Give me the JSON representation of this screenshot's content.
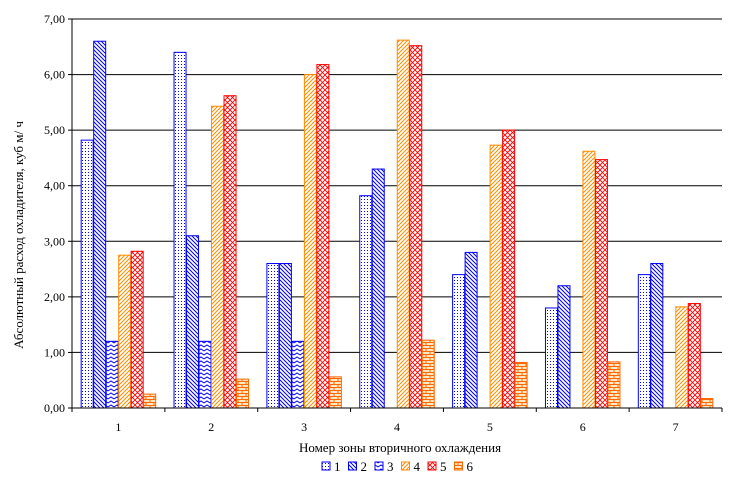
{
  "chart_data": {
    "type": "bar",
    "xlabel": "Номер зоны вторичного охлаждения",
    "ylabel": "Абсолютный расход охладителя, куб м/ ч",
    "categories": [
      "1",
      "2",
      "3",
      "4",
      "5",
      "6",
      "7"
    ],
    "ylim": [
      0,
      7
    ],
    "ytick_values": [
      0,
      1,
      2,
      3,
      4,
      5,
      6,
      7
    ],
    "ytick_labels": [
      "0,00",
      "1,00",
      "2,00",
      "3,00",
      "4,00",
      "5,00",
      "6,00",
      "7,00"
    ],
    "grid": true,
    "legend_position": "bottom",
    "series": [
      {
        "name": "1",
        "values": [
          4.82,
          6.4,
          2.6,
          3.82,
          2.4,
          1.8,
          2.4
        ],
        "color": "#0000ff",
        "pattern": "dots"
      },
      {
        "name": "2",
        "values": [
          6.6,
          3.1,
          2.6,
          4.3,
          2.8,
          2.2,
          2.6
        ],
        "color": "#0000ff",
        "pattern": "diag-down"
      },
      {
        "name": "3",
        "values": [
          1.2,
          1.2,
          1.2,
          0,
          0,
          0,
          0
        ],
        "color": "#0000ff",
        "pattern": "zigzag"
      },
      {
        "name": "4",
        "values": [
          2.75,
          5.43,
          6.0,
          6.62,
          4.73,
          4.62,
          1.82
        ],
        "color": "#ff8c00",
        "pattern": "diag-up"
      },
      {
        "name": "5",
        "values": [
          2.82,
          5.62,
          6.18,
          6.52,
          5.0,
          4.47,
          1.88
        ],
        "color": "#ff0000",
        "pattern": "crosshatch"
      },
      {
        "name": "6",
        "values": [
          0.25,
          0.52,
          0.56,
          1.22,
          0.82,
          0.83,
          0.17
        ],
        "color": "#ff6600",
        "pattern": "brick"
      }
    ]
  }
}
